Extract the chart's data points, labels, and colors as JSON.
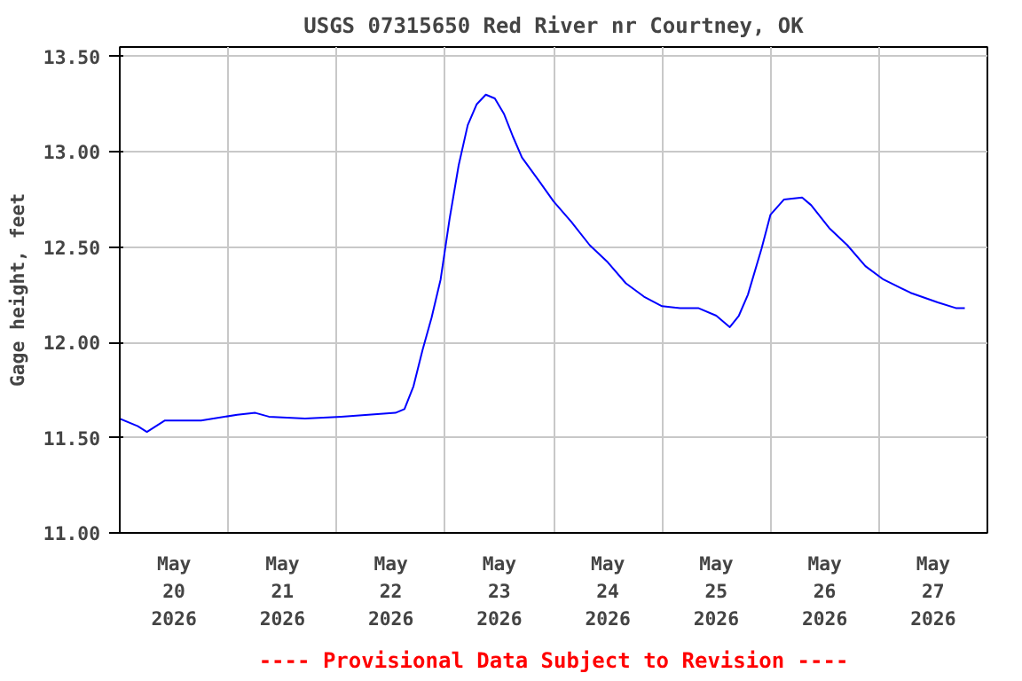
{
  "chart_data": {
    "type": "line",
    "title": "USGS 07315650 Red River nr Courtney, OK",
    "ylabel": "Gage height, feet",
    "annotations": [
      "---- Provisional Data Subject to Revision ----"
    ],
    "x": [
      "2026-05-20T00:00",
      "2026-05-20T04:00",
      "2026-05-20T06:00",
      "2026-05-20T10:00",
      "2026-05-20T14:00",
      "2026-05-20T18:00",
      "2026-05-21T02:00",
      "2026-05-21T06:00",
      "2026-05-21T09:00",
      "2026-05-21T17:00",
      "2026-05-22T01:00",
      "2026-05-22T13:00",
      "2026-05-22T15:00",
      "2026-05-22T17:00",
      "2026-05-22T19:00",
      "2026-05-22T21:00",
      "2026-05-22T23:00",
      "2026-05-23T01:00",
      "2026-05-23T03:00",
      "2026-05-23T05:00",
      "2026-05-23T07:00",
      "2026-05-23T09:00",
      "2026-05-23T11:00",
      "2026-05-23T13:00",
      "2026-05-23T15:00",
      "2026-05-23T17:00",
      "2026-05-23T21:00",
      "2026-05-24T00:00",
      "2026-05-24T04:00",
      "2026-05-24T08:00",
      "2026-05-24T12:00",
      "2026-05-24T16:00",
      "2026-05-24T20:00",
      "2026-05-25T00:00",
      "2026-05-25T04:00",
      "2026-05-25T08:00",
      "2026-05-25T12:00",
      "2026-05-25T15:00",
      "2026-05-25T17:00",
      "2026-05-25T19:00",
      "2026-05-25T22:00",
      "2026-05-26T00:00",
      "2026-05-26T03:00",
      "2026-05-26T07:00",
      "2026-05-26T09:00",
      "2026-05-26T13:00",
      "2026-05-26T17:00",
      "2026-05-26T21:00",
      "2026-05-27T01:00",
      "2026-05-27T07:00",
      "2026-05-27T13:00",
      "2026-05-27T17:00",
      "2026-05-27T19:00"
    ],
    "series": [
      {
        "color": "#0000ff",
        "values": [
          11.6,
          11.56,
          11.53,
          11.59,
          11.59,
          11.59,
          11.62,
          11.63,
          11.61,
          11.6,
          11.61,
          11.63,
          11.65,
          11.77,
          11.96,
          12.13,
          12.33,
          12.65,
          12.93,
          13.14,
          13.25,
          13.3,
          13.28,
          13.2,
          13.08,
          12.97,
          12.84,
          12.74,
          12.63,
          12.51,
          12.42,
          12.31,
          12.24,
          12.19,
          12.18,
          12.18,
          12.14,
          12.08,
          12.14,
          12.25,
          12.49,
          12.67,
          12.75,
          12.76,
          12.72,
          12.6,
          12.51,
          12.4,
          12.33,
          12.26,
          12.21,
          12.18,
          12.18
        ]
      }
    ],
    "xlim": [
      "2026-05-20T00:00",
      "2026-05-28T00:00"
    ],
    "xticks": [
      {
        "value": "2026-05-20T00:00",
        "label": null
      },
      {
        "value": "2026-05-20T12:00",
        "label": "May\n20\n2026"
      },
      {
        "value": "2026-05-21T00:00",
        "label": null
      },
      {
        "value": "2026-05-21T12:00",
        "label": "May\n21\n2026"
      },
      {
        "value": "2026-05-22T00:00",
        "label": null
      },
      {
        "value": "2026-05-22T12:00",
        "label": "May\n22\n2026"
      },
      {
        "value": "2026-05-23T00:00",
        "label": null
      },
      {
        "value": "2026-05-23T12:00",
        "label": "May\n23\n2026"
      },
      {
        "value": "2026-05-24T00:00",
        "label": null
      },
      {
        "value": "2026-05-24T12:00",
        "label": "May\n24\n2026"
      },
      {
        "value": "2026-05-25T00:00",
        "label": null
      },
      {
        "value": "2026-05-25T12:00",
        "label": "May\n25\n2026"
      },
      {
        "value": "2026-05-26T00:00",
        "label": null
      },
      {
        "value": "2026-05-26T12:00",
        "label": "May\n26\n2026"
      },
      {
        "value": "2026-05-27T00:00",
        "label": null
      },
      {
        "value": "2026-05-27T12:00",
        "label": "May\n27\n2026"
      },
      {
        "value": "2026-05-28T00:00",
        "label": null
      }
    ],
    "ylim": [
      11.0,
      13.55
    ],
    "yticks": [
      {
        "value": 11.0,
        "label": "11.00"
      },
      {
        "value": 11.5,
        "label": "11.50"
      },
      {
        "value": 12.0,
        "label": "12.00"
      },
      {
        "value": 12.5,
        "label": "12.50"
      },
      {
        "value": 13.0,
        "label": "13.00"
      },
      {
        "value": 13.5,
        "label": "13.50"
      }
    ],
    "grid": true,
    "marker": "none",
    "line_style": "solid"
  }
}
